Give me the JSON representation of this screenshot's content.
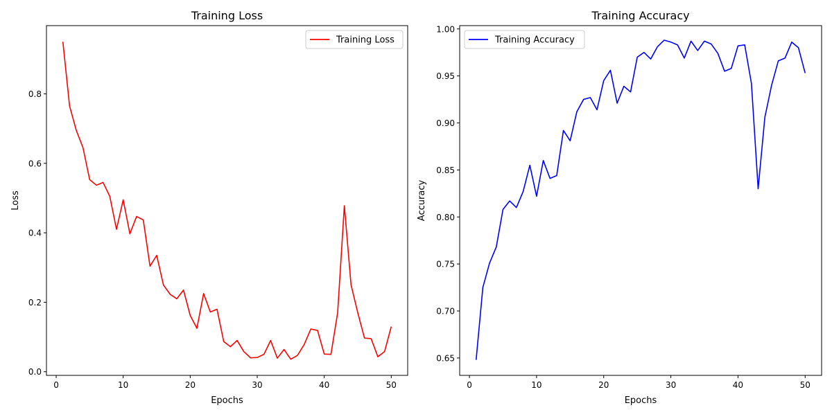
{
  "chart_data": [
    {
      "type": "line",
      "title": "Training Loss",
      "xlabel": "Epochs",
      "ylabel": "Loss",
      "xlim": [
        -1.45,
        52.45
      ],
      "ylim": [
        -0.0105,
        0.9965
      ],
      "xticks": [
        0,
        10,
        20,
        30,
        40,
        50
      ],
      "xtick_labels": [
        "0",
        "10",
        "20",
        "30",
        "40",
        "50"
      ],
      "yticks": [
        0.0,
        0.2,
        0.4,
        0.6,
        0.8
      ],
      "ytick_labels": [
        "0.0",
        "0.2",
        "0.4",
        "0.6",
        "0.8"
      ],
      "grid": false,
      "legend": "upper-right",
      "series": [
        {
          "name": "Training Loss",
          "color": "#ff0000",
          "x": [
            1,
            2,
            3,
            4,
            5,
            6,
            7,
            8,
            9,
            10,
            11,
            12,
            13,
            14,
            15,
            16,
            17,
            18,
            19,
            20,
            21,
            22,
            23,
            24,
            25,
            26,
            27,
            28,
            29,
            30,
            31,
            32,
            33,
            34,
            35,
            36,
            37,
            38,
            39,
            40,
            41,
            42,
            43,
            44,
            45,
            46,
            47,
            48,
            49,
            50
          ],
          "values": [
            0.95,
            0.765,
            0.695,
            0.645,
            0.553,
            0.537,
            0.545,
            0.505,
            0.41,
            0.495,
            0.397,
            0.447,
            0.437,
            0.304,
            0.335,
            0.25,
            0.223,
            0.21,
            0.235,
            0.162,
            0.125,
            0.225,
            0.172,
            0.18,
            0.087,
            0.072,
            0.09,
            0.058,
            0.04,
            0.041,
            0.05,
            0.09,
            0.039,
            0.064,
            0.036,
            0.047,
            0.078,
            0.123,
            0.119,
            0.051,
            0.05,
            0.17,
            0.478,
            0.25,
            0.17,
            0.097,
            0.095,
            0.043,
            0.058,
            0.13
          ]
        }
      ]
    },
    {
      "type": "line",
      "title": "Training Accuracy",
      "xlabel": "Epochs",
      "ylabel": "Accuracy",
      "xlim": [
        -1.45,
        52.45
      ],
      "ylim": [
        0.6315,
        1.0035
      ],
      "xticks": [
        0,
        10,
        20,
        30,
        40,
        50
      ],
      "xtick_labels": [
        "0",
        "10",
        "20",
        "30",
        "40",
        "50"
      ],
      "yticks": [
        0.65,
        0.7,
        0.75,
        0.8,
        0.85,
        0.9,
        0.95,
        1.0
      ],
      "ytick_labels": [
        "0.65",
        "0.70",
        "0.75",
        "0.80",
        "0.85",
        "0.90",
        "0.95",
        "1.00"
      ],
      "grid": false,
      "legend": "upper-left",
      "series": [
        {
          "name": "Training Accuracy",
          "color": "#0000ff",
          "x": [
            1,
            2,
            3,
            4,
            5,
            6,
            7,
            8,
            9,
            10,
            11,
            12,
            13,
            14,
            15,
            16,
            17,
            18,
            19,
            20,
            21,
            22,
            23,
            24,
            25,
            26,
            27,
            28,
            29,
            30,
            31,
            32,
            33,
            34,
            35,
            36,
            37,
            38,
            39,
            40,
            41,
            42,
            43,
            44,
            45,
            46,
            47,
            48,
            49,
            50
          ],
          "values": [
            0.648,
            0.725,
            0.751,
            0.768,
            0.808,
            0.817,
            0.81,
            0.827,
            0.855,
            0.822,
            0.86,
            0.841,
            0.844,
            0.892,
            0.881,
            0.912,
            0.925,
            0.927,
            0.914,
            0.945,
            0.956,
            0.921,
            0.939,
            0.933,
            0.97,
            0.975,
            0.968,
            0.981,
            0.988,
            0.986,
            0.983,
            0.969,
            0.987,
            0.977,
            0.987,
            0.984,
            0.974,
            0.955,
            0.958,
            0.982,
            0.983,
            0.942,
            0.83,
            0.906,
            0.94,
            0.966,
            0.969,
            0.986,
            0.98,
            0.953
          ]
        }
      ]
    }
  ]
}
